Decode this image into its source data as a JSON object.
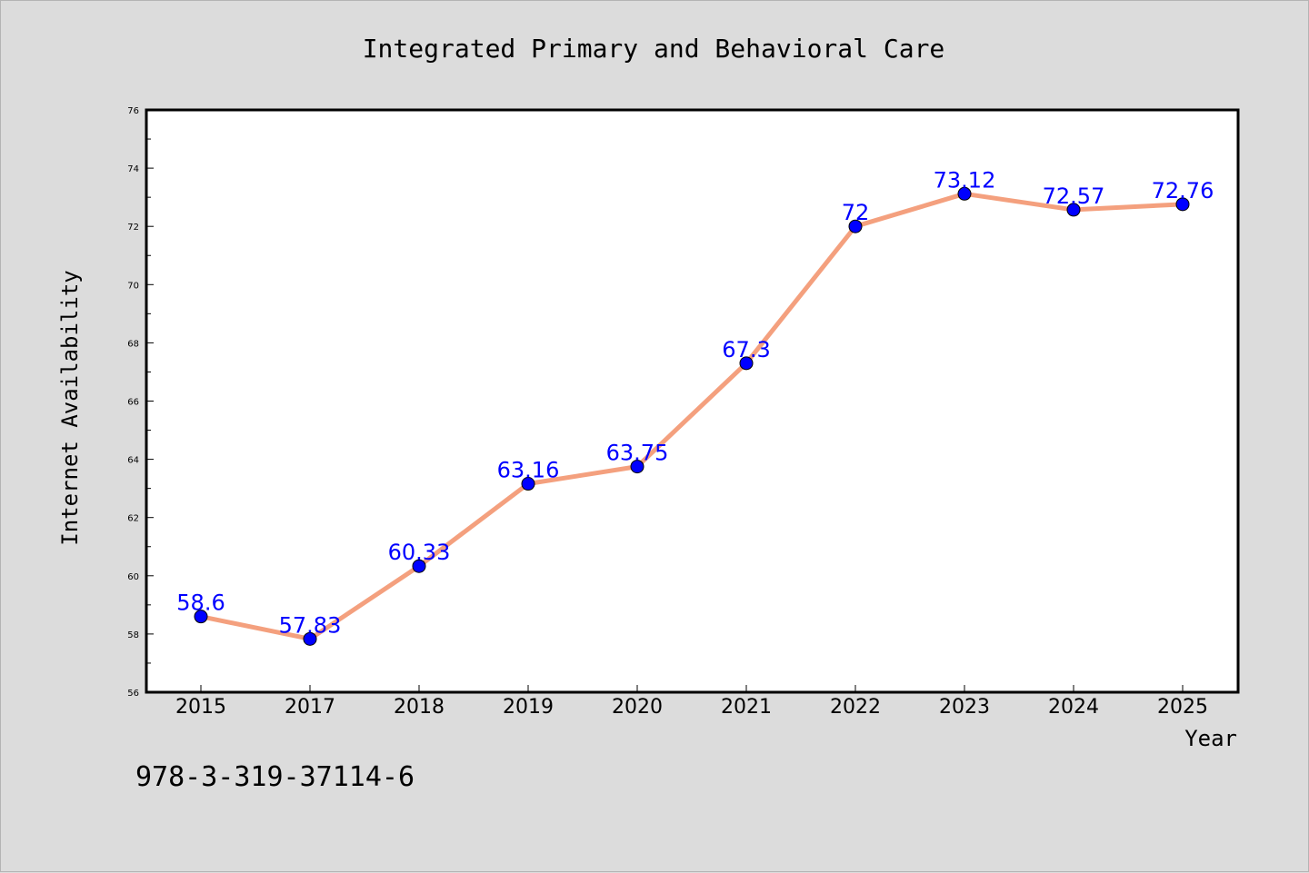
{
  "chart_data": {
    "type": "line",
    "title": "Integrated Primary and Behavioral Care",
    "xlabel": "Year",
    "ylabel": "Internet Availability",
    "categories": [
      "2015",
      "2017",
      "2018",
      "2019",
      "2020",
      "2021",
      "2022",
      "2023",
      "2024",
      "2025"
    ],
    "series": [
      {
        "values": [
          58.6,
          57.83,
          60.33,
          63.16,
          63.75,
          67.3,
          72,
          73.12,
          72.57,
          72.76
        ],
        "data_labels": [
          "58.6",
          "57.83",
          "60.33",
          "63.16",
          "63.75",
          "67.3",
          "72",
          "73.12",
          "72.57",
          "72.76"
        ],
        "line_color": "#f4a07e",
        "marker_color": "#0000ff"
      }
    ],
    "ylim": [
      56,
      76
    ],
    "yticks": [
      "56",
      "58",
      "60",
      "62",
      "64",
      "66",
      "68",
      "70",
      "72",
      "74",
      "76"
    ],
    "grid": false,
    "legend": "none"
  },
  "annotation": {
    "isbn": "978-3-319-37114-6"
  },
  "colors": {
    "background": "#dcdcdc",
    "plot_background": "#ffffff",
    "label_color": "#0000ff"
  }
}
